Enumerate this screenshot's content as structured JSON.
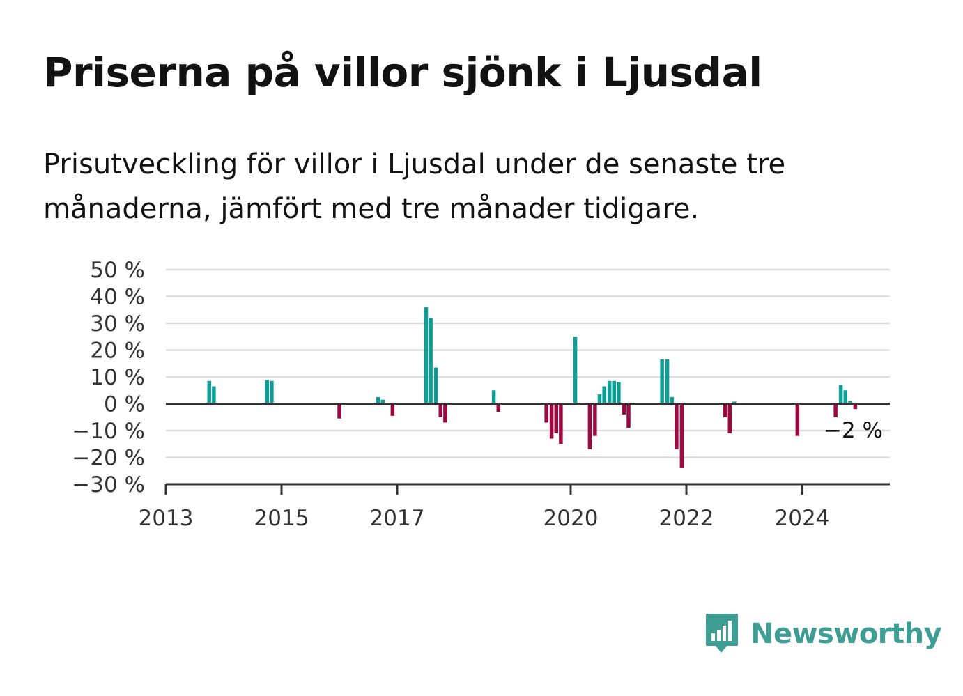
{
  "title": "Priserna på villor sjönk i Ljusdal",
  "subtitle": "Prisutveckling för villor i Ljusdal under de senaste tre månaderna, jämfört med tre månader tidigare.",
  "logo": {
    "text": "Newsworthy",
    "icon": "newsworthy-logo-icon",
    "color": "#3f9e94"
  },
  "colors": {
    "positive": "#0f9e95",
    "negative": "#9c0a42",
    "grid": "#dddddd",
    "axis": "#333333"
  },
  "chart_data": {
    "type": "bar",
    "title": "Priserna på villor sjönk i Ljusdal",
    "subtitle": "Prisutveckling för villor i Ljusdal under de senaste tre månaderna, jämfört med tre månader tidigare.",
    "xlabel": "",
    "ylabel": "",
    "x_unit": "year (decimal)",
    "xlim": [
      2013.0,
      2025.5
    ],
    "ylim": [
      -30,
      50
    ],
    "x_ticks": [
      {
        "value": 2013,
        "label": "2013"
      },
      {
        "value": 2015,
        "label": "2015"
      },
      {
        "value": 2017,
        "label": "2017"
      },
      {
        "value": 2020,
        "label": "2020"
      },
      {
        "value": 2022,
        "label": "2022"
      },
      {
        "value": 2024,
        "label": "2024"
      }
    ],
    "y_ticks": [
      {
        "value": 50,
        "label": "50 %"
      },
      {
        "value": 40,
        "label": "40 %"
      },
      {
        "value": 30,
        "label": "30 %"
      },
      {
        "value": 20,
        "label": "20 %"
      },
      {
        "value": 10,
        "label": "10 %"
      },
      {
        "value": 0,
        "label": "0 %"
      },
      {
        "value": -10,
        "label": "−10 %"
      },
      {
        "value": -20,
        "label": "−20 %"
      },
      {
        "value": -30,
        "label": "−30 %"
      }
    ],
    "grid": true,
    "end_label": "−2 %",
    "bars": [
      {
        "x": 2013.75,
        "value": 8.5
      },
      {
        "x": 2013.83,
        "value": 6.5
      },
      {
        "x": 2014.75,
        "value": 8.8
      },
      {
        "x": 2014.83,
        "value": 8.5
      },
      {
        "x": 2016.0,
        "value": -5.5
      },
      {
        "x": 2016.67,
        "value": 2.5
      },
      {
        "x": 2016.75,
        "value": 1.5
      },
      {
        "x": 2016.92,
        "value": -4.5
      },
      {
        "x": 2017.5,
        "value": 36
      },
      {
        "x": 2017.58,
        "value": 32
      },
      {
        "x": 2017.67,
        "value": 13.5
      },
      {
        "x": 2017.75,
        "value": -5
      },
      {
        "x": 2017.83,
        "value": -7
      },
      {
        "x": 2018.67,
        "value": 5
      },
      {
        "x": 2018.75,
        "value": -3
      },
      {
        "x": 2019.58,
        "value": -7
      },
      {
        "x": 2019.67,
        "value": -13
      },
      {
        "x": 2019.75,
        "value": -11
      },
      {
        "x": 2019.83,
        "value": -15
      },
      {
        "x": 2020.08,
        "value": 25
      },
      {
        "x": 2020.33,
        "value": -17
      },
      {
        "x": 2020.42,
        "value": -12
      },
      {
        "x": 2020.5,
        "value": 3.5
      },
      {
        "x": 2020.58,
        "value": 6.5
      },
      {
        "x": 2020.67,
        "value": 8.5
      },
      {
        "x": 2020.75,
        "value": 8.5
      },
      {
        "x": 2020.83,
        "value": 8
      },
      {
        "x": 2020.92,
        "value": -4
      },
      {
        "x": 2021.0,
        "value": -9
      },
      {
        "x": 2021.58,
        "value": 16.5
      },
      {
        "x": 2021.67,
        "value": 16.5
      },
      {
        "x": 2021.75,
        "value": 2.5
      },
      {
        "x": 2021.83,
        "value": -17
      },
      {
        "x": 2021.92,
        "value": -24
      },
      {
        "x": 2022.67,
        "value": -5
      },
      {
        "x": 2022.75,
        "value": -11
      },
      {
        "x": 2022.83,
        "value": 0.8
      },
      {
        "x": 2023.92,
        "value": -12
      },
      {
        "x": 2024.58,
        "value": -5
      },
      {
        "x": 2024.67,
        "value": 7
      },
      {
        "x": 2024.75,
        "value": 5
      },
      {
        "x": 2024.83,
        "value": 1
      },
      {
        "x": 2024.92,
        "value": -2
      }
    ]
  }
}
